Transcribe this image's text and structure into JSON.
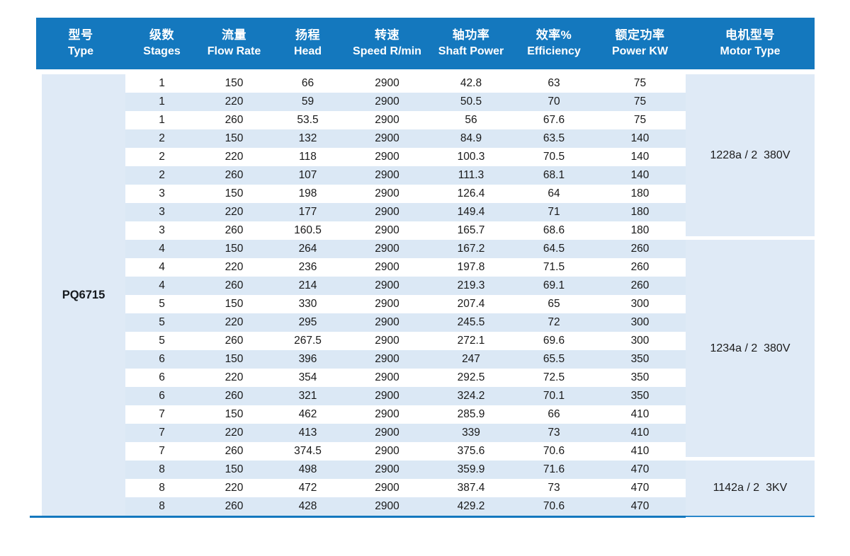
{
  "table": {
    "pump_type": "PQ6715",
    "columns": [
      {
        "zh": "型号",
        "en": "Type"
      },
      {
        "zh": "级数",
        "en": "Stages"
      },
      {
        "zh": "流量",
        "en": "Flow Rate"
      },
      {
        "zh": "扬程",
        "en": "Head"
      },
      {
        "zh": "转速",
        "en": "Speed R/min"
      },
      {
        "zh": "轴功率",
        "en": "Shaft Power"
      },
      {
        "zh": "效率%",
        "en": "Efficiency"
      },
      {
        "zh": "额定功率",
        "en": "Power KW"
      },
      {
        "zh": "电机型号",
        "en": "Motor Type"
      }
    ],
    "rows": [
      {
        "stages": "1",
        "flow_rate": "150",
        "head": "66",
        "speed": "2900",
        "shaft_power": "42.8",
        "efficiency": "63",
        "power_kw": "75"
      },
      {
        "stages": "1",
        "flow_rate": "220",
        "head": "59",
        "speed": "2900",
        "shaft_power": "50.5",
        "efficiency": "70",
        "power_kw": "75"
      },
      {
        "stages": "1",
        "flow_rate": "260",
        "head": "53.5",
        "speed": "2900",
        "shaft_power": "56",
        "efficiency": "67.6",
        "power_kw": "75"
      },
      {
        "stages": "2",
        "flow_rate": "150",
        "head": "132",
        "speed": "2900",
        "shaft_power": "84.9",
        "efficiency": "63.5",
        "power_kw": "140"
      },
      {
        "stages": "2",
        "flow_rate": "220",
        "head": "118",
        "speed": "2900",
        "shaft_power": "100.3",
        "efficiency": "70.5",
        "power_kw": "140"
      },
      {
        "stages": "2",
        "flow_rate": "260",
        "head": "107",
        "speed": "2900",
        "shaft_power": "111.3",
        "efficiency": "68.1",
        "power_kw": "140"
      },
      {
        "stages": "3",
        "flow_rate": "150",
        "head": "198",
        "speed": "2900",
        "shaft_power": "126.4",
        "efficiency": "64",
        "power_kw": "180"
      },
      {
        "stages": "3",
        "flow_rate": "220",
        "head": "177",
        "speed": "2900",
        "shaft_power": "149.4",
        "efficiency": "71",
        "power_kw": "180"
      },
      {
        "stages": "3",
        "flow_rate": "260",
        "head": "160.5",
        "speed": "2900",
        "shaft_power": "165.7",
        "efficiency": "68.6",
        "power_kw": "180"
      },
      {
        "stages": "4",
        "flow_rate": "150",
        "head": "264",
        "speed": "2900",
        "shaft_power": "167.2",
        "efficiency": "64.5",
        "power_kw": "260"
      },
      {
        "stages": "4",
        "flow_rate": "220",
        "head": "236",
        "speed": "2900",
        "shaft_power": "197.8",
        "efficiency": "71.5",
        "power_kw": "260"
      },
      {
        "stages": "4",
        "flow_rate": "260",
        "head": "214",
        "speed": "2900",
        "shaft_power": "219.3",
        "efficiency": "69.1",
        "power_kw": "260"
      },
      {
        "stages": "5",
        "flow_rate": "150",
        "head": "330",
        "speed": "2900",
        "shaft_power": "207.4",
        "efficiency": "65",
        "power_kw": "300"
      },
      {
        "stages": "5",
        "flow_rate": "220",
        "head": "295",
        "speed": "2900",
        "shaft_power": "245.5",
        "efficiency": "72",
        "power_kw": "300"
      },
      {
        "stages": "5",
        "flow_rate": "260",
        "head": "267.5",
        "speed": "2900",
        "shaft_power": "272.1",
        "efficiency": "69.6",
        "power_kw": "300"
      },
      {
        "stages": "6",
        "flow_rate": "150",
        "head": "396",
        "speed": "2900",
        "shaft_power": "247",
        "efficiency": "65.5",
        "power_kw": "350"
      },
      {
        "stages": "6",
        "flow_rate": "220",
        "head": "354",
        "speed": "2900",
        "shaft_power": "292.5",
        "efficiency": "72.5",
        "power_kw": "350"
      },
      {
        "stages": "6",
        "flow_rate": "260",
        "head": "321",
        "speed": "2900",
        "shaft_power": "324.2",
        "efficiency": "70.1",
        "power_kw": "350"
      },
      {
        "stages": "7",
        "flow_rate": "150",
        "head": "462",
        "speed": "2900",
        "shaft_power": "285.9",
        "efficiency": "66",
        "power_kw": "410"
      },
      {
        "stages": "7",
        "flow_rate": "220",
        "head": "413",
        "speed": "2900",
        "shaft_power": "339",
        "efficiency": "73",
        "power_kw": "410"
      },
      {
        "stages": "7",
        "flow_rate": "260",
        "head": "374.5",
        "speed": "2900",
        "shaft_power": "375.6",
        "efficiency": "70.6",
        "power_kw": "410"
      },
      {
        "stages": "8",
        "flow_rate": "150",
        "head": "498",
        "speed": "2900",
        "shaft_power": "359.9",
        "efficiency": "71.6",
        "power_kw": "470"
      },
      {
        "stages": "8",
        "flow_rate": "220",
        "head": "472",
        "speed": "2900",
        "shaft_power": "387.4",
        "efficiency": "73",
        "power_kw": "470"
      },
      {
        "stages": "8",
        "flow_rate": "260",
        "head": "428",
        "speed": "2900",
        "shaft_power": "429.2",
        "efficiency": "70.6",
        "power_kw": "470"
      }
    ],
    "motor_groups": [
      {
        "label": "1228a / 2  380V",
        "row_span": 9
      },
      {
        "label": "1234a / 2  380V",
        "row_span": 12
      },
      {
        "label": "1142a / 2  3KV",
        "row_span": 3
      }
    ],
    "colors": {
      "header_bg": "#1478be",
      "header_text": "#ffffff",
      "stripe_blue": "#dbe8f5",
      "merged_cell_blue": "#dfeaf6",
      "bottom_line": "#1478be",
      "body_text": "#191919"
    }
  }
}
